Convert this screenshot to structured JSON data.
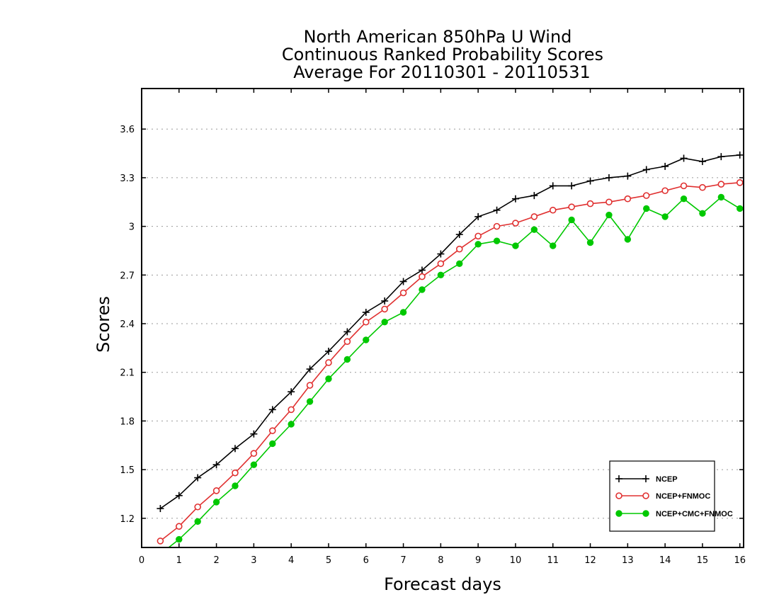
{
  "chart_data": {
    "type": "line",
    "title": [
      "North American 850hPa U Wind",
      "Continuous Ranked Probability Scores",
      "Average For 20110301 - 20110531"
    ],
    "xlabel": "Forecast days",
    "ylabel": "Scores",
    "xlim": [
      0,
      16.1
    ],
    "ylim": [
      1.02,
      3.85
    ],
    "xticks": [
      0,
      1,
      2,
      3,
      4,
      5,
      6,
      7,
      8,
      9,
      10,
      11,
      12,
      13,
      14,
      15,
      16
    ],
    "xtick_labels": [
      "0",
      "1",
      "2",
      "3",
      "4",
      "5",
      "6",
      "7",
      "8",
      "9",
      "10",
      "11",
      "12",
      "13",
      "14",
      "15",
      "16"
    ],
    "yticks": [
      1.2,
      1.5,
      1.8,
      2.1,
      2.4,
      2.7,
      3,
      3.3,
      3.6
    ],
    "ytick_labels": [
      "1.2",
      "1.5",
      "1.8",
      "2.1",
      "2.4",
      "2.7",
      "3",
      "3.3",
      "3.6"
    ],
    "grid": "horizontal dotted",
    "legend_position": "bottom-right",
    "x": [
      0.5,
      1,
      1.5,
      2,
      2.5,
      3,
      3.5,
      4,
      4.5,
      5,
      5.5,
      6,
      6.5,
      7,
      7.5,
      8,
      8.5,
      9,
      9.5,
      10,
      10.5,
      11,
      11.5,
      12,
      12.5,
      13,
      13.5,
      14,
      14.5,
      15,
      15.5,
      16
    ],
    "series": [
      {
        "name": "NCEP",
        "color": "#000000",
        "marker": "plus",
        "values": [
          1.26,
          1.34,
          1.45,
          1.53,
          1.63,
          1.72,
          1.87,
          1.98,
          2.12,
          2.23,
          2.35,
          2.47,
          2.54,
          2.66,
          2.73,
          2.83,
          2.95,
          3.06,
          3.1,
          3.17,
          3.19,
          3.25,
          3.25,
          3.28,
          3.3,
          3.31,
          3.35,
          3.37,
          3.42,
          3.4,
          3.43,
          3.44
        ]
      },
      {
        "name": "NCEP+FNMOC",
        "color": "#e03030",
        "marker": "open-circle",
        "values": [
          1.06,
          1.15,
          1.27,
          1.37,
          1.48,
          1.6,
          1.74,
          1.87,
          2.02,
          2.16,
          2.29,
          2.41,
          2.49,
          2.59,
          2.69,
          2.77,
          2.86,
          2.94,
          3.0,
          3.02,
          3.06,
          3.1,
          3.12,
          3.14,
          3.15,
          3.17,
          3.19,
          3.22,
          3.25,
          3.24,
          3.26,
          3.27
        ]
      },
      {
        "name": "NCEP+CMC+FNMOC",
        "color": "#00c800",
        "marker": "filled-circle",
        "values": [
          0.98,
          1.07,
          1.18,
          1.3,
          1.4,
          1.53,
          1.66,
          1.78,
          1.92,
          2.06,
          2.18,
          2.3,
          2.41,
          2.47,
          2.61,
          2.7,
          2.77,
          2.89,
          2.91,
          2.88,
          2.98,
          2.88,
          3.04,
          2.9,
          3.07,
          2.92,
          3.11,
          3.06,
          3.17,
          3.08,
          3.18,
          3.11
        ]
      }
    ]
  }
}
